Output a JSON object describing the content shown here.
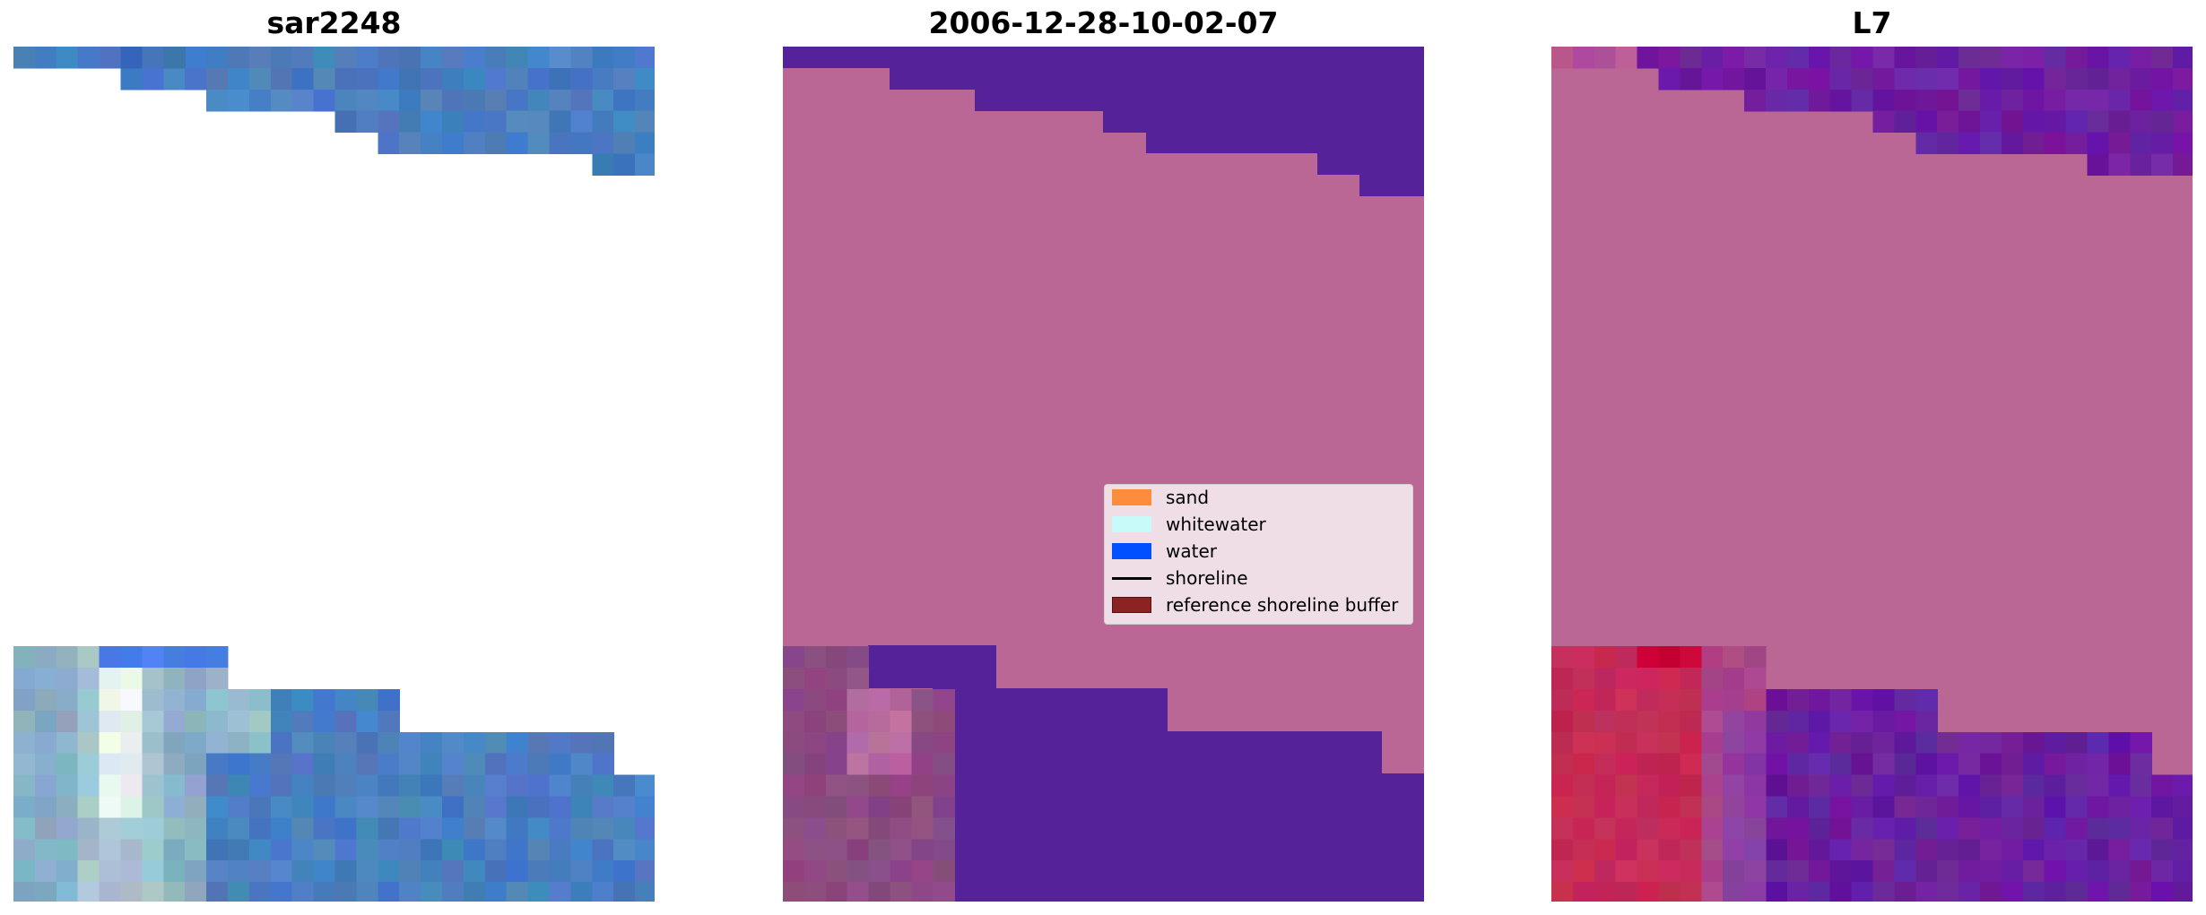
{
  "chart_data": [
    {
      "type": "heatmap",
      "title": "sar2248",
      "image": "rgb-satellite-tile",
      "colors": {
        "main": "#4a7fc1",
        "whitewater": "#e8f0f4",
        "nodata": "#ffffff"
      }
    },
    {
      "type": "heatmap",
      "title": "2006-12-28-10-02-07",
      "image": "classified-overlay",
      "colors": {
        "land": "#bb6796",
        "water": "#55229a",
        "dark_mix": "#8a4a86"
      },
      "legend": {
        "placement": "right",
        "entries": [
          {
            "label": "sand",
            "color": "#ff8c3a",
            "kind": "patch"
          },
          {
            "label": "whitewater",
            "color": "#c8fafa",
            "kind": "patch"
          },
          {
            "label": "water",
            "color": "#0050ff",
            "kind": "patch"
          },
          {
            "label": "shoreline",
            "color": "#000000",
            "kind": "line"
          },
          {
            "label": "reference shoreline buffer",
            "color": "#8b2323",
            "kind": "patch"
          }
        ]
      }
    },
    {
      "type": "heatmap",
      "title": "L7",
      "image": "probability-overlay",
      "colors": {
        "land": "#bb6796",
        "water": "#6a1ca0",
        "sand": "#c62a55"
      }
    }
  ]
}
